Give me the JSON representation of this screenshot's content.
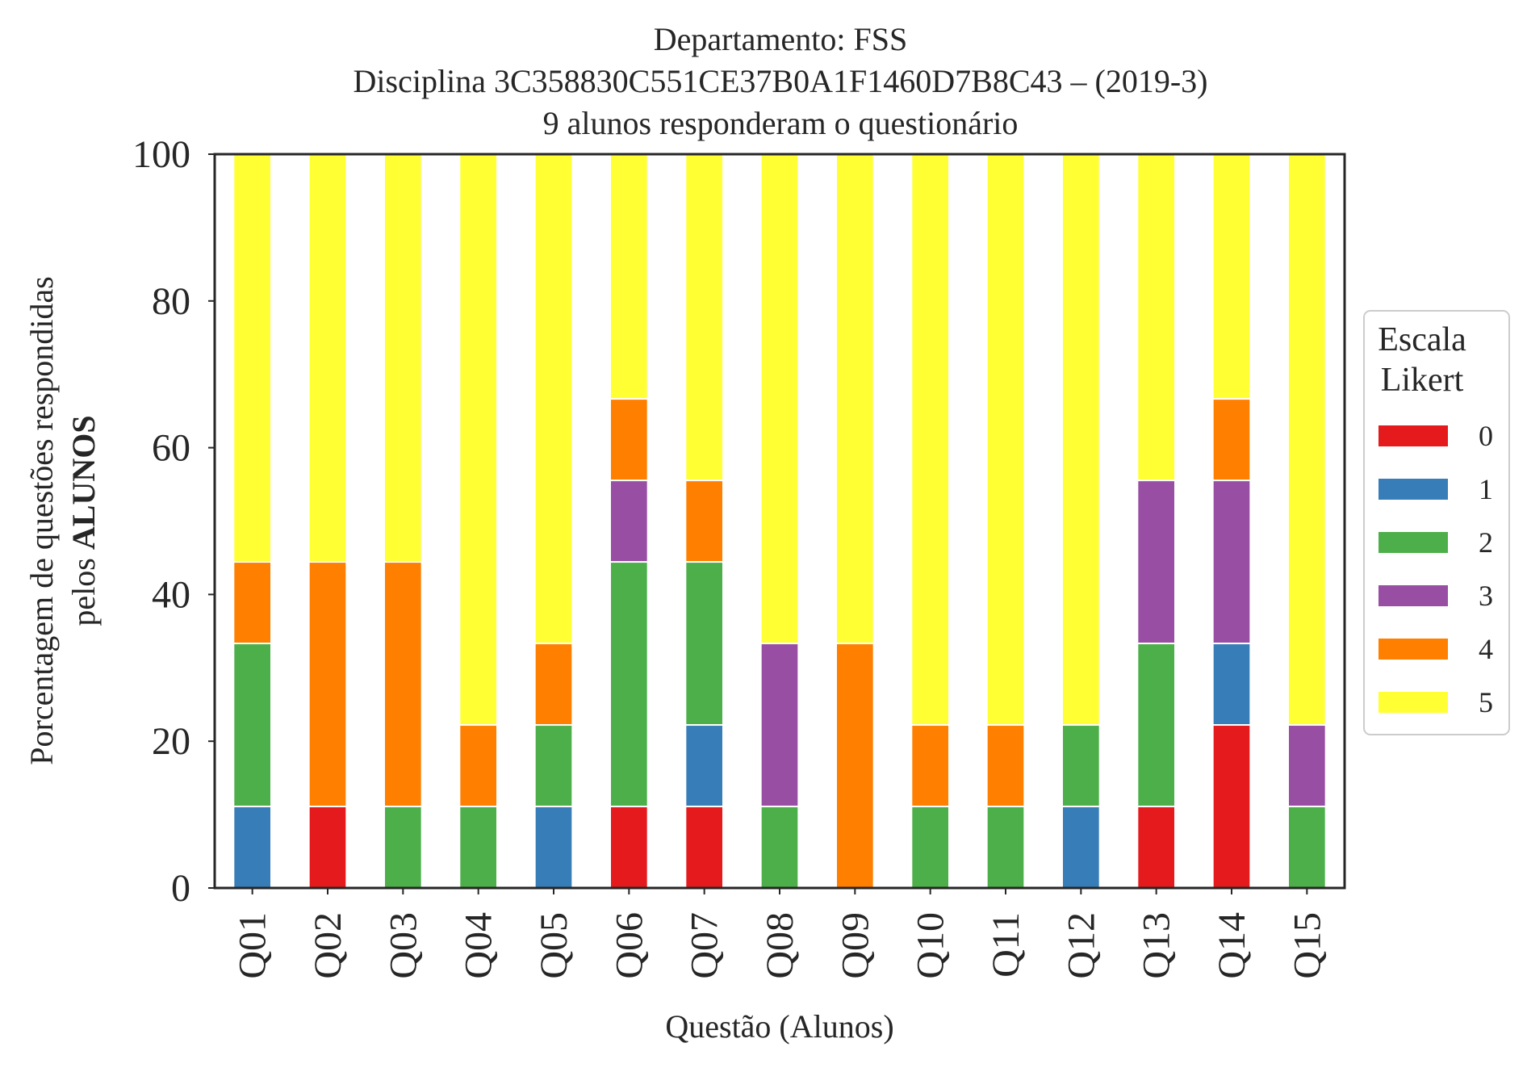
{
  "chart_data": {
    "type": "bar",
    "stacked": true,
    "title": "Departamento: FSS",
    "subtitle_lines": [
      "Disciplina 3C358830C551CE37B0A1F1460D7B8C43 – (2019-3)",
      "9 alunos responderam o questionário"
    ],
    "xlabel": "Questão (Alunos)",
    "ylabel_line1": "Porcentagem de questões respondidas",
    "ylabel_line2_prefix": "pelos ",
    "ylabel_line2_bold": "ALUNOS",
    "ylim": [
      0,
      100
    ],
    "yticks": [
      "0",
      "20",
      "40",
      "60",
      "80",
      "100"
    ],
    "grid": false,
    "categories": [
      "Q01",
      "Q02",
      "Q03",
      "Q04",
      "Q05",
      "Q06",
      "Q07",
      "Q08",
      "Q09",
      "Q10",
      "Q11",
      "Q12",
      "Q13",
      "Q14",
      "Q15"
    ],
    "legend_title_lines": [
      "Escala",
      "Likert"
    ],
    "legend_position": "center-right",
    "series": [
      {
        "name": "0",
        "color": "#e41a1c",
        "values": [
          0,
          11.11,
          0,
          0,
          0,
          11.11,
          11.11,
          0,
          0,
          0,
          0,
          0,
          11.11,
          22.22,
          0
        ]
      },
      {
        "name": "1",
        "color": "#377eb8",
        "values": [
          11.11,
          0,
          0,
          0,
          11.11,
          0,
          11.11,
          0,
          0,
          0,
          0,
          11.11,
          0,
          11.11,
          0
        ]
      },
      {
        "name": "2",
        "color": "#4daf4a",
        "values": [
          22.22,
          0,
          11.11,
          11.11,
          11.11,
          33.33,
          22.22,
          11.11,
          0,
          11.11,
          11.11,
          11.11,
          22.22,
          0,
          11.11
        ]
      },
      {
        "name": "3",
        "color": "#984ea3",
        "values": [
          0,
          0,
          0,
          0,
          0,
          11.11,
          0,
          22.22,
          0,
          0,
          0,
          0,
          22.22,
          22.22,
          11.11
        ]
      },
      {
        "name": "4",
        "color": "#ff7f00",
        "values": [
          11.11,
          33.33,
          33.33,
          11.11,
          11.11,
          11.11,
          11.11,
          0,
          33.33,
          11.11,
          11.11,
          0,
          0,
          11.11,
          0
        ]
      },
      {
        "name": "5",
        "color": "#ffff33",
        "values": [
          55.56,
          55.56,
          55.56,
          77.78,
          66.67,
          33.33,
          44.44,
          66.67,
          66.67,
          77.78,
          77.78,
          77.78,
          44.44,
          33.33,
          77.78
        ]
      }
    ]
  }
}
